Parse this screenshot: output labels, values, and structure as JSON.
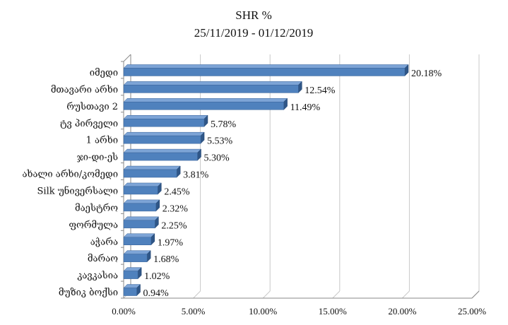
{
  "chart_data": {
    "type": "bar",
    "orientation": "horizontal",
    "style": "3d",
    "title": "SHR %",
    "subtitle": "25/11/2019 - 01/12/2019",
    "categories": [
      "იმედი",
      "მთავარი არხი",
      "რუსთავი 2",
      "ტვ პირველი",
      "1 არხი",
      "ჯი-დი-ეს",
      "ახალი არხი/კომედი",
      "Silk უნივერსალი",
      "მაესტრო",
      "ფორმულა",
      "აჭარა",
      "მარაო",
      "კავკასია",
      "მუზიკ ბოქსი"
    ],
    "values": [
      20.18,
      12.54,
      11.49,
      5.78,
      5.53,
      5.3,
      3.81,
      2.45,
      2.32,
      2.25,
      1.97,
      1.68,
      1.02,
      0.94
    ],
    "value_labels": [
      "20.18%",
      "12.54%",
      "11.49%",
      "5.78%",
      "5.53%",
      "5.30%",
      "3.81%",
      "2.45%",
      "2.32%",
      "2.25%",
      "1.97%",
      "1.68%",
      "1.02%",
      "0.94%"
    ],
    "xlim": [
      0,
      25
    ],
    "xticks": [
      0,
      5,
      10,
      15,
      20,
      25
    ],
    "xtick_labels": [
      "0.00%",
      "5.00%",
      "10.00%",
      "15.00%",
      "20.00%",
      "25.00%"
    ],
    "xlabel": "",
    "ylabel": "",
    "grid": true,
    "legend": false,
    "colors": {
      "bar_front": "#4f81bd",
      "bar_top": "#7da4d6",
      "bar_side": "#2f5687",
      "grid": "#c8c8c8"
    }
  }
}
